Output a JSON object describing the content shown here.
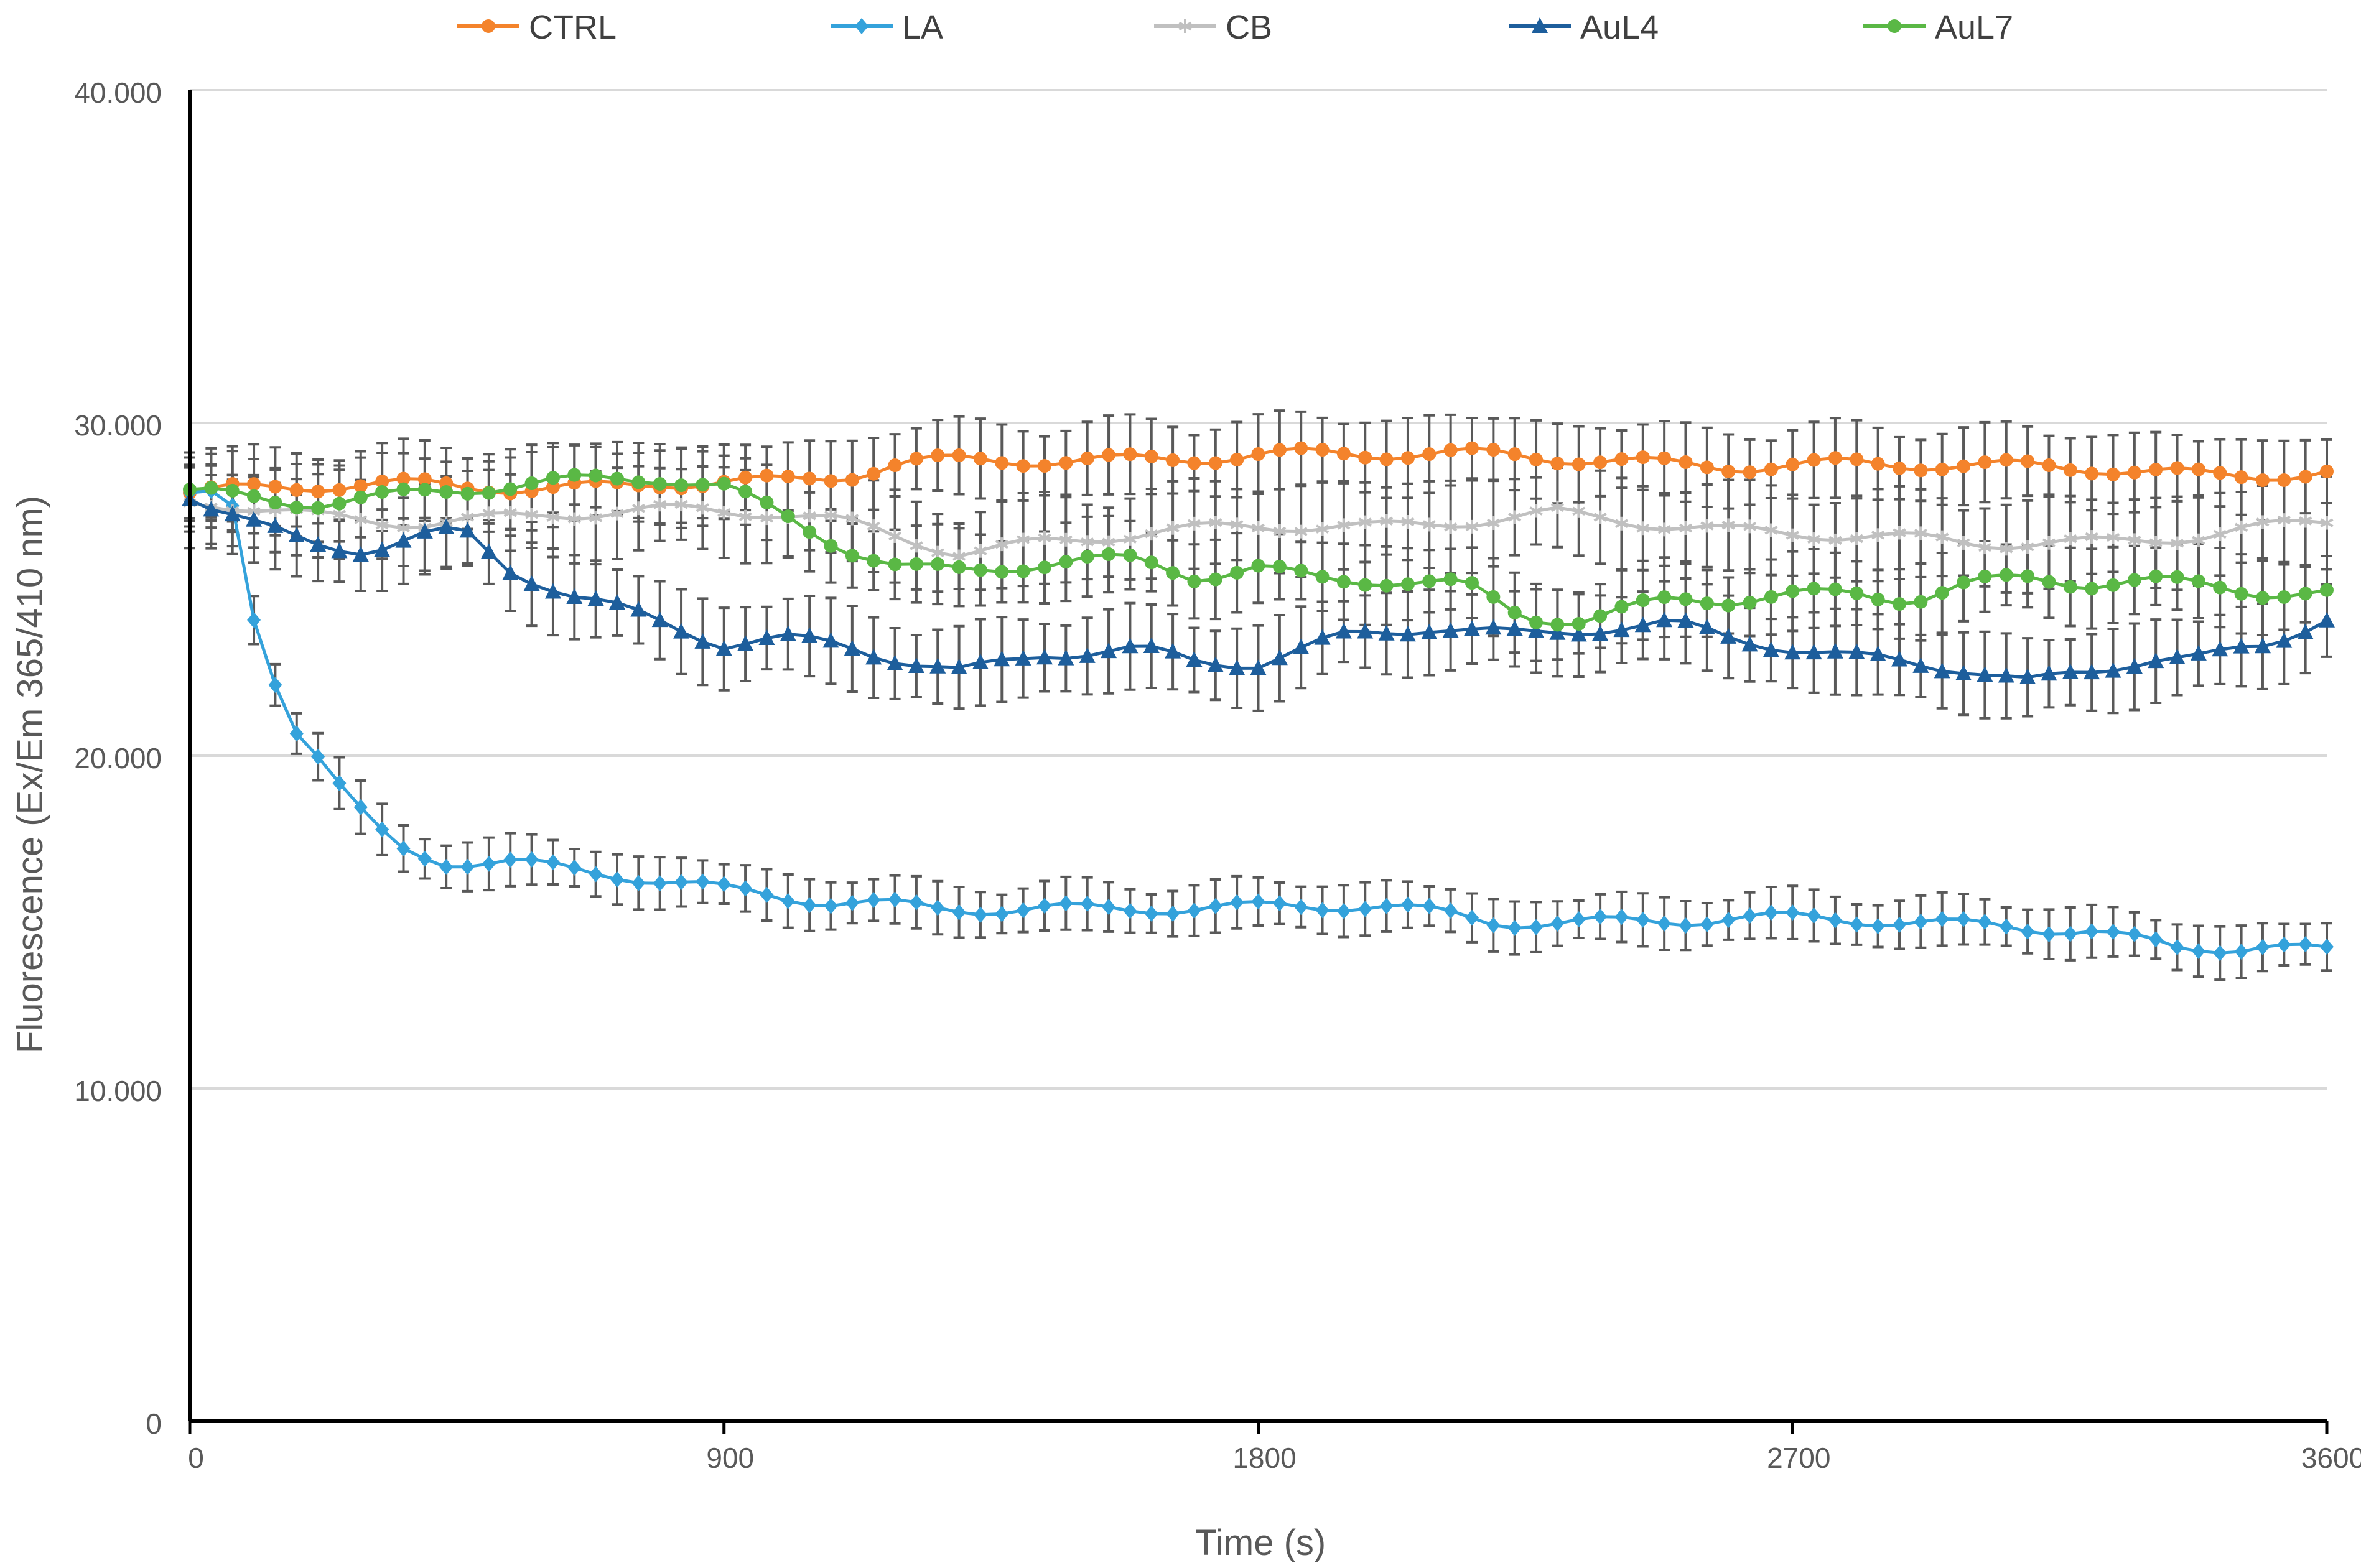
{
  "chart_data": {
    "type": "line",
    "title": "",
    "xlabel": "Time (s)",
    "ylabel": "Fluorescence  (Ex/Em 365/410 nm)",
    "xlim": [
      0,
      3600
    ],
    "ylim": [
      0,
      40000
    ],
    "x_ticks": [
      0,
      900,
      1800,
      2700,
      3600
    ],
    "x_tick_labels": [
      "0",
      "900",
      "1800",
      "2700",
      "3600"
    ],
    "y_ticks": [
      0,
      10000,
      20000,
      30000,
      40000
    ],
    "y_tick_labels": [
      "0",
      "10.000",
      "20.000",
      "30.000",
      "40.000"
    ],
    "grid": true,
    "legend_position": "top",
    "x_start": 0,
    "x_step": 36,
    "series": [
      {
        "name": "CTRL",
        "color": "#f4832b",
        "marker": "circle",
        "keypoints": [
          [
            0,
            27900
          ],
          [
            200,
            28000
          ],
          [
            400,
            28100
          ],
          [
            600,
            28100
          ],
          [
            800,
            28300
          ],
          [
            1000,
            28200
          ],
          [
            1100,
            28300
          ],
          [
            1200,
            28700
          ],
          [
            1300,
            28800
          ],
          [
            1440,
            28900
          ],
          [
            1600,
            29000
          ],
          [
            1800,
            29100
          ],
          [
            2000,
            29000
          ],
          [
            2200,
            28950
          ],
          [
            2400,
            28900
          ],
          [
            2600,
            28800
          ],
          [
            2800,
            28800
          ],
          [
            3000,
            28600
          ],
          [
            3200,
            28600
          ],
          [
            3400,
            28500
          ],
          [
            3600,
            28600
          ]
        ],
        "error": 1200
      },
      {
        "name": "LA",
        "color": "#34a2db",
        "marker": "diamond",
        "keypoints": [
          [
            0,
            27900
          ],
          [
            70,
            27600
          ],
          [
            108,
            24100
          ],
          [
            144,
            22200
          ],
          [
            180,
            20700
          ],
          [
            216,
            19900
          ],
          [
            260,
            18800
          ],
          [
            310,
            17800
          ],
          [
            360,
            17200
          ],
          [
            430,
            16900
          ],
          [
            540,
            16900
          ],
          [
            720,
            16500
          ],
          [
            900,
            15900
          ],
          [
            1080,
            15500
          ],
          [
            1260,
            15400
          ],
          [
            1440,
            15500
          ],
          [
            1620,
            15500
          ],
          [
            1800,
            15400
          ],
          [
            2000,
            15400
          ],
          [
            2200,
            15000
          ],
          [
            2400,
            15100
          ],
          [
            2600,
            15200
          ],
          [
            2800,
            15000
          ],
          [
            3000,
            14800
          ],
          [
            3200,
            14800
          ],
          [
            3350,
            14300
          ],
          [
            3500,
            14400
          ],
          [
            3600,
            14100
          ]
        ],
        "error": 800
      },
      {
        "name": "CB",
        "color": "#c0c0c0",
        "marker": "star",
        "keypoints": [
          [
            0,
            27600
          ],
          [
            200,
            27200
          ],
          [
            400,
            27100
          ],
          [
            600,
            27300
          ],
          [
            800,
            27300
          ],
          [
            1000,
            27200
          ],
          [
            1100,
            27000
          ],
          [
            1200,
            26600
          ],
          [
            1300,
            26200
          ],
          [
            1440,
            26500
          ],
          [
            1600,
            26700
          ],
          [
            1800,
            26800
          ],
          [
            2000,
            26800
          ],
          [
            2200,
            27200
          ],
          [
            2300,
            27400
          ],
          [
            2400,
            27200
          ],
          [
            2600,
            26700
          ],
          [
            2800,
            26500
          ],
          [
            3000,
            26400
          ],
          [
            3200,
            26500
          ],
          [
            3400,
            26700
          ],
          [
            3600,
            27000
          ]
        ],
        "error": 1400
      },
      {
        "name": "AuL4",
        "color": "#1d5e9c",
        "marker": "triangle",
        "keypoints": [
          [
            0,
            27700
          ],
          [
            100,
            27000
          ],
          [
            200,
            26500
          ],
          [
            300,
            26300
          ],
          [
            400,
            26700
          ],
          [
            460,
            26800
          ],
          [
            540,
            25600
          ],
          [
            650,
            24700
          ],
          [
            760,
            24100
          ],
          [
            900,
            23300
          ],
          [
            1000,
            23500
          ],
          [
            1100,
            23400
          ],
          [
            1200,
            23000
          ],
          [
            1300,
            22600
          ],
          [
            1440,
            23100
          ],
          [
            1600,
            23100
          ],
          [
            1700,
            22700
          ],
          [
            1800,
            22700
          ],
          [
            1950,
            23600
          ],
          [
            2100,
            24000
          ],
          [
            2250,
            23700
          ],
          [
            2400,
            23900
          ],
          [
            2500,
            23900
          ],
          [
            2600,
            23400
          ],
          [
            2800,
            22900
          ],
          [
            2900,
            22800
          ],
          [
            3000,
            22700
          ],
          [
            3100,
            22300
          ],
          [
            3200,
            22600
          ],
          [
            3300,
            23000
          ],
          [
            3400,
            22900
          ],
          [
            3500,
            23200
          ],
          [
            3600,
            24100
          ]
        ],
        "error": 1300
      },
      {
        "name": "AuL7",
        "color": "#5ab845",
        "marker": "circle",
        "keypoints": [
          [
            0,
            28000
          ],
          [
            200,
            27700
          ],
          [
            400,
            27900
          ],
          [
            600,
            28100
          ],
          [
            800,
            28300
          ],
          [
            900,
            28100
          ],
          [
            1000,
            27300
          ],
          [
            1100,
            26400
          ],
          [
            1200,
            25700
          ],
          [
            1300,
            25600
          ],
          [
            1440,
            25700
          ],
          [
            1600,
            25800
          ],
          [
            1700,
            25300
          ],
          [
            1800,
            25600
          ],
          [
            1900,
            25400
          ],
          [
            2000,
            25400
          ],
          [
            2150,
            25200
          ],
          [
            2250,
            24200
          ],
          [
            2350,
            24000
          ],
          [
            2500,
            24600
          ],
          [
            2600,
            24600
          ],
          [
            2700,
            24800
          ],
          [
            2800,
            24900
          ],
          [
            2900,
            24800
          ],
          [
            3000,
            25300
          ],
          [
            3100,
            25400
          ],
          [
            3200,
            25200
          ],
          [
            3300,
            25200
          ],
          [
            3400,
            25000
          ],
          [
            3500,
            24800
          ],
          [
            3600,
            24800
          ]
        ],
        "error": 1200
      }
    ]
  }
}
